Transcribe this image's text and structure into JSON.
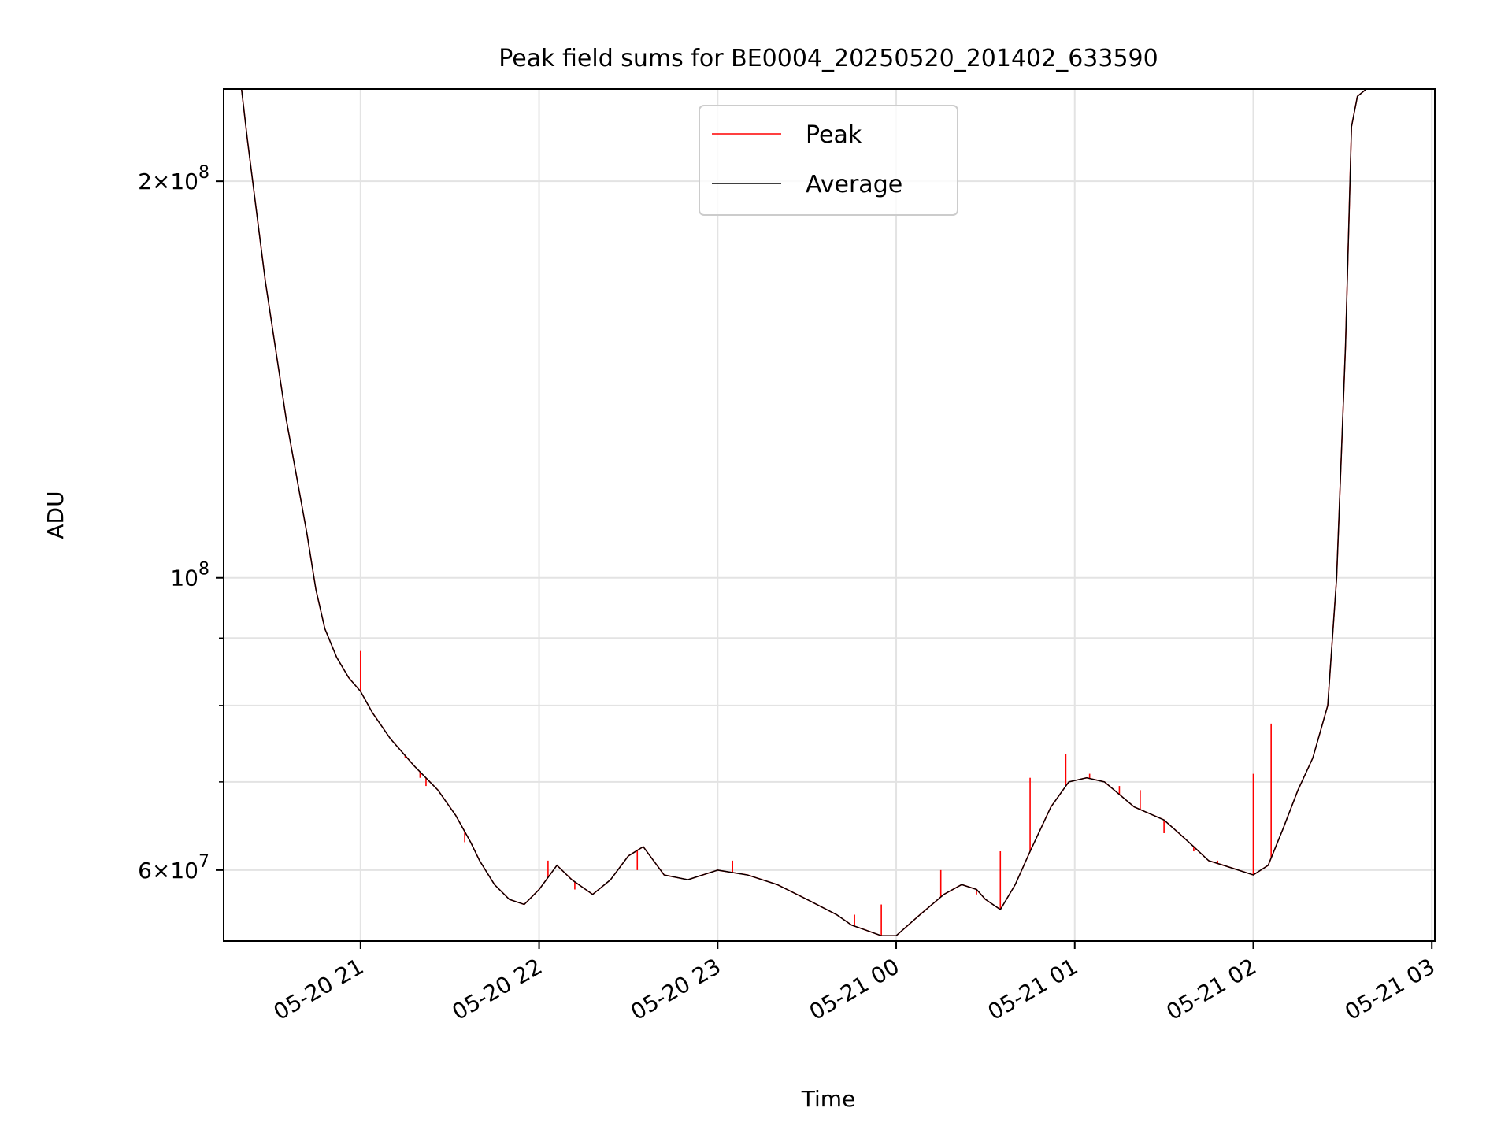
{
  "chart_data": {
    "type": "line",
    "title": "Peak field sums for BE0004_20250520_201402_633590",
    "xlabel": "Time",
    "ylabel": "ADU",
    "yscale": "log",
    "ylim": [
      53000000,
      235000000
    ],
    "xlim": [
      "2025-05-20 20:14",
      "2025-05-21 03:01"
    ],
    "x_ticks": [
      {
        "value": "2025-05-20 21:00",
        "label": "05-20 21"
      },
      {
        "value": "2025-05-20 22:00",
        "label": "05-20 22"
      },
      {
        "value": "2025-05-20 23:00",
        "label": "05-20 23"
      },
      {
        "value": "2025-05-21 00:00",
        "label": "05-21 00"
      },
      {
        "value": "2025-05-21 01:00",
        "label": "05-21 01"
      },
      {
        "value": "2025-05-21 02:00",
        "label": "05-21 02"
      },
      {
        "value": "2025-05-21 03:00",
        "label": "05-21 03"
      }
    ],
    "y_ticks": [
      {
        "value": 200000000,
        "mant": "2",
        "exp": "8"
      },
      {
        "value": 100000000,
        "mant": "",
        "exp": "8"
      },
      {
        "value": 60000000,
        "mant": "6",
        "exp": "7"
      }
    ],
    "y_minor_ticks": [
      70000000,
      80000000,
      90000000
    ],
    "grid": true,
    "legend": "top-center",
    "series": [
      {
        "name": "Peak",
        "color": "#ff0000",
        "spikes": [
          {
            "x": "2025-05-20 21:00",
            "y": 88000000
          },
          {
            "x": "2025-05-20 21:15",
            "y": 73000000
          },
          {
            "x": "2025-05-20 21:20",
            "y": 70500000
          },
          {
            "x": "2025-05-20 21:22",
            "y": 69500000
          },
          {
            "x": "2025-05-20 21:35",
            "y": 63000000
          },
          {
            "x": "2025-05-20 22:03",
            "y": 61000000
          },
          {
            "x": "2025-05-20 22:12",
            "y": 58000000
          },
          {
            "x": "2025-05-20 22:33",
            "y": 60000000
          },
          {
            "x": "2025-05-20 22:42",
            "y": 59500000
          },
          {
            "x": "2025-05-20 23:05",
            "y": 61000000
          },
          {
            "x": "2025-05-20 23:15",
            "y": 59000000
          },
          {
            "x": "2025-05-20 23:40",
            "y": 55500000
          },
          {
            "x": "2025-05-20 23:46",
            "y": 55500000
          },
          {
            "x": "2025-05-20 23:55",
            "y": 56500000
          },
          {
            "x": "2025-05-21 00:15",
            "y": 60000000
          },
          {
            "x": "2025-05-21 00:27",
            "y": 57500000
          },
          {
            "x": "2025-05-21 00:35",
            "y": 62000000
          },
          {
            "x": "2025-05-21 00:45",
            "y": 70500000
          },
          {
            "x": "2025-05-21 00:57",
            "y": 73500000
          },
          {
            "x": "2025-05-21 01:05",
            "y": 71000000
          },
          {
            "x": "2025-05-21 01:15",
            "y": 69500000
          },
          {
            "x": "2025-05-21 01:22",
            "y": 69000000
          },
          {
            "x": "2025-05-21 01:30",
            "y": 64000000
          },
          {
            "x": "2025-05-21 01:40",
            "y": 62000000
          },
          {
            "x": "2025-05-21 01:48",
            "y": 61000000
          },
          {
            "x": "2025-05-21 02:00",
            "y": 71000000
          },
          {
            "x": "2025-05-21 02:06",
            "y": 77500000
          }
        ]
      },
      {
        "name": "Average",
        "color": "#000000",
        "x": [
          "2025-05-20 20:14",
          "2025-05-20 20:20",
          "2025-05-20 20:22",
          "2025-05-20 20:28",
          "2025-05-20 20:35",
          "2025-05-20 20:42",
          "2025-05-20 20:45",
          "2025-05-20 20:48",
          "2025-05-20 20:52",
          "2025-05-20 20:56",
          "2025-05-20 21:00",
          "2025-05-20 21:04",
          "2025-05-20 21:10",
          "2025-05-20 21:18",
          "2025-05-20 21:26",
          "2025-05-20 21:32",
          "2025-05-20 21:37",
          "2025-05-20 21:40",
          "2025-05-20 21:45",
          "2025-05-20 21:50",
          "2025-05-20 21:55",
          "2025-05-20 22:00",
          "2025-05-20 22:06",
          "2025-05-20 22:11",
          "2025-05-20 22:18",
          "2025-05-20 22:24",
          "2025-05-20 22:30",
          "2025-05-20 22:35",
          "2025-05-20 22:42",
          "2025-05-20 22:50",
          "2025-05-20 22:55",
          "2025-05-20 23:00",
          "2025-05-20 23:10",
          "2025-05-20 23:20",
          "2025-05-20 23:30",
          "2025-05-20 23:40",
          "2025-05-20 23:45",
          "2025-05-20 23:50",
          "2025-05-20 23:55",
          "2025-05-21 00:00",
          "2025-05-21 00:08",
          "2025-05-21 00:16",
          "2025-05-21 00:22",
          "2025-05-21 00:27",
          "2025-05-21 00:30",
          "2025-05-21 00:35",
          "2025-05-21 00:40",
          "2025-05-21 00:45",
          "2025-05-21 00:52",
          "2025-05-21 00:58",
          "2025-05-21 01:04",
          "2025-05-21 01:10",
          "2025-05-21 01:20",
          "2025-05-21 01:30",
          "2025-05-21 01:35",
          "2025-05-21 01:40",
          "2025-05-21 01:45",
          "2025-05-21 01:50",
          "2025-05-21 01:55",
          "2025-05-21 02:00",
          "2025-05-21 02:05",
          "2025-05-21 02:10",
          "2025-05-21 02:15",
          "2025-05-21 02:20",
          "2025-05-21 02:25",
          "2025-05-21 02:28",
          "2025-05-21 02:31",
          "2025-05-21 02:33",
          "2025-05-21 02:35",
          "2025-05-21 02:38"
        ],
        "y": [
          235000000,
          235000000,
          215000000,
          168000000,
          132000000,
          108000000,
          98000000,
          91500000,
          87000000,
          84000000,
          82000000,
          79000000,
          75500000,
          72000000,
          69000000,
          66000000,
          63000000,
          61000000,
          58500000,
          57000000,
          56500000,
          58000000,
          60500000,
          59000000,
          57500000,
          59000000,
          61500000,
          62500000,
          59500000,
          59000000,
          59500000,
          60000000,
          59500000,
          58500000,
          57000000,
          55500000,
          54500000,
          54000000,
          53500000,
          53500000,
          55500000,
          57500000,
          58500000,
          58000000,
          57000000,
          56000000,
          58500000,
          62000000,
          67000000,
          70000000,
          70500000,
          70000000,
          67000000,
          65500000,
          64000000,
          62500000,
          61000000,
          60500000,
          60000000,
          59500000,
          60500000,
          64500000,
          69000000,
          73000000,
          80000000,
          100000000,
          150000000,
          220000000,
          232000000,
          235000000
        ]
      }
    ]
  }
}
